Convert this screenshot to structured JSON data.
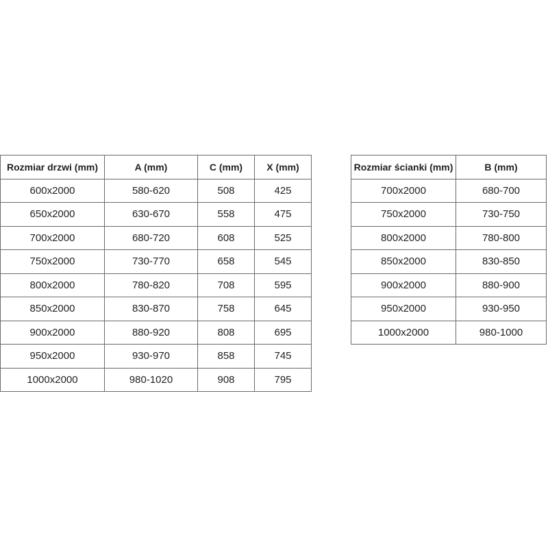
{
  "doors_table": {
    "headers": [
      "Rozmiar drzwi (mm)",
      "A (mm)",
      "C (mm)",
      "X (mm)"
    ],
    "rows": [
      [
        "600x2000",
        "580-620",
        "508",
        "425"
      ],
      [
        "650x2000",
        "630-670",
        "558",
        "475"
      ],
      [
        "700x2000",
        "680-720",
        "608",
        "525"
      ],
      [
        "750x2000",
        "730-770",
        "658",
        "545"
      ],
      [
        "800x2000",
        "780-820",
        "708",
        "595"
      ],
      [
        "850x2000",
        "830-870",
        "758",
        "645"
      ],
      [
        "900x2000",
        "880-920",
        "808",
        "695"
      ],
      [
        "950x2000",
        "930-970",
        "858",
        "745"
      ],
      [
        "1000x2000",
        "980-1020",
        "908",
        "795"
      ]
    ]
  },
  "wall_table": {
    "headers": [
      "Rozmiar ścianki (mm)",
      "B (mm)"
    ],
    "rows": [
      [
        "700x2000",
        "680-700"
      ],
      [
        "750x2000",
        "730-750"
      ],
      [
        "800x2000",
        "780-800"
      ],
      [
        "850x2000",
        "830-850"
      ],
      [
        "900x2000",
        "880-900"
      ],
      [
        "950x2000",
        "930-950"
      ],
      [
        "1000x2000",
        "980-1000"
      ]
    ]
  }
}
